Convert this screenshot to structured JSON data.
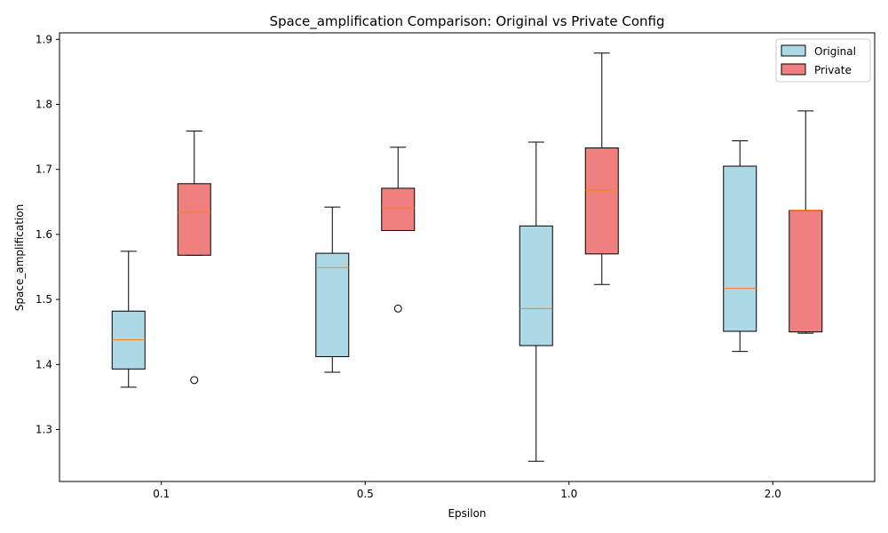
{
  "chart_data": {
    "type": "boxplot",
    "title": "Space_amplification Comparison: Original vs Private Config",
    "xlabel": "Epsilon",
    "ylabel": "Space_amplification",
    "categories": [
      "0.1",
      "0.5",
      "1.0",
      "2.0"
    ],
    "ylim": [
      1.22,
      1.91
    ],
    "yticks": [
      1.3,
      1.4,
      1.5,
      1.6,
      1.7,
      1.8,
      1.9
    ],
    "legend_position": "upper right",
    "grid": false,
    "series": [
      {
        "name": "Original",
        "color": "#add8e6",
        "boxes": [
          {
            "whislo": 1.365,
            "q1": 1.393,
            "med": 1.438,
            "q3": 1.482,
            "whishi": 1.574,
            "fliers": []
          },
          {
            "whislo": 1.388,
            "q1": 1.412,
            "med": 1.549,
            "q3": 1.571,
            "whishi": 1.642,
            "fliers": []
          },
          {
            "whislo": 1.251,
            "q1": 1.429,
            "med": 1.486,
            "q3": 1.613,
            "whishi": 1.742,
            "fliers": []
          },
          {
            "whislo": 1.42,
            "q1": 1.451,
            "med": 1.517,
            "q3": 1.705,
            "whishi": 1.744,
            "fliers": []
          }
        ]
      },
      {
        "name": "Private",
        "color": "#f08080",
        "boxes": [
          {
            "whislo": 1.568,
            "q1": 1.568,
            "med": 1.634,
            "q3": 1.678,
            "whishi": 1.759,
            "fliers": [
              1.376
            ]
          },
          {
            "whislo": 1.606,
            "q1": 1.606,
            "med": 1.641,
            "q3": 1.671,
            "whishi": 1.734,
            "fliers": [
              1.486
            ]
          },
          {
            "whislo": 1.523,
            "q1": 1.57,
            "med": 1.668,
            "q3": 1.733,
            "whishi": 1.879,
            "fliers": []
          },
          {
            "whislo": 1.448,
            "q1": 1.45,
            "med": 1.637,
            "q3": 1.637,
            "whishi": 1.79,
            "fliers": []
          }
        ]
      }
    ],
    "median_color": "#ff7f0e"
  }
}
